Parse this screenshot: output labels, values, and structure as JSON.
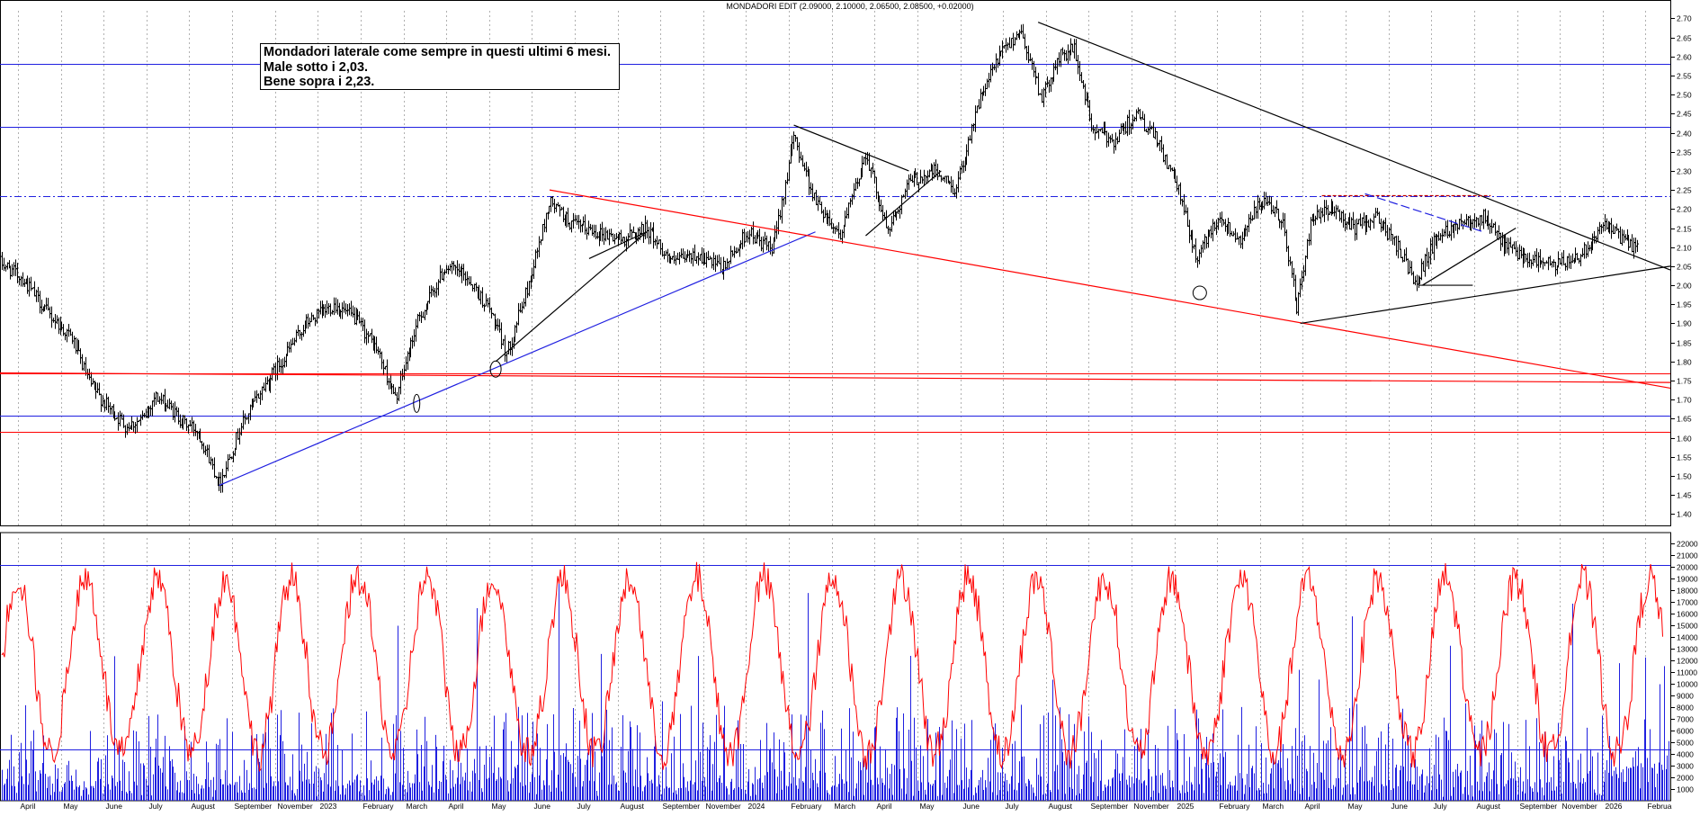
{
  "header": {
    "title": "MONDADORI EDIT (2.09000, 2.10000, 2.06500, 2.08500, +0.02000)"
  },
  "annotation": {
    "line1": "Mondadori laterale come sempre in questi ultimi  6 mesi.",
    "line2": "Male sotto i 2,03.",
    "line3": "Bene sopra i 2,23."
  },
  "colors": {
    "price_bars": "#000000",
    "support_line": "#2020e0",
    "resistance_red": "#ff0000",
    "horizontal_blue": "#2020e0",
    "oscillator": "#ff0000",
    "volume": "#2020e0",
    "grid": "#b0b0b0"
  },
  "chart_data": [
    {
      "type": "line",
      "name": "price",
      "x_axis_labels": [
        "April",
        "May",
        "June",
        "July",
        "August",
        "September",
        "November",
        "2023",
        "February",
        "March",
        "April",
        "May",
        "June",
        "July",
        "August",
        "September",
        "November",
        "2024",
        "February",
        "March",
        "April",
        "May",
        "June",
        "July",
        "August",
        "September",
        "November",
        "2025",
        "February",
        "March",
        "April",
        "May",
        "June",
        "July",
        "August",
        "September",
        "November",
        "2026",
        "Februa"
      ],
      "y_ticks": [
        "1.40",
        "1.45",
        "1.50",
        "1.55",
        "1.60",
        "1.65",
        "1.70",
        "1.75",
        "1.80",
        "1.85",
        "1.90",
        "1.95",
        "2.00",
        "2.05",
        "2.10",
        "2.15",
        "2.20",
        "2.25",
        "2.30",
        "2.35",
        "2.40",
        "2.45",
        "2.50",
        "2.55",
        "2.60",
        "2.65",
        "2.70"
      ],
      "ylim": [
        1.37,
        2.72
      ],
      "x_range_months": [
        0,
        46.5
      ],
      "price_path": [
        [
          0.0,
          2.06
        ],
        [
          0.6,
          2.02
        ],
        [
          1.3,
          1.93
        ],
        [
          2.0,
          1.86
        ],
        [
          2.5,
          1.74
        ],
        [
          3.0,
          1.68
        ],
        [
          3.5,
          1.63
        ],
        [
          4.0,
          1.65
        ],
        [
          4.3,
          1.71
        ],
        [
          4.7,
          1.68
        ],
        [
          5.1,
          1.64
        ],
        [
          5.5,
          1.62
        ],
        [
          6.1,
          1.48
        ],
        [
          6.7,
          1.63
        ],
        [
          7.3,
          1.73
        ],
        [
          7.9,
          1.81
        ],
        [
          8.5,
          1.9
        ],
        [
          9.3,
          1.95
        ],
        [
          9.9,
          1.91
        ],
        [
          10.5,
          1.83
        ],
        [
          11.0,
          1.7
        ],
        [
          11.6,
          1.9
        ],
        [
          12.4,
          2.05
        ],
        [
          13.0,
          2.02
        ],
        [
          13.6,
          1.94
        ],
        [
          14.1,
          1.82
        ],
        [
          14.7,
          2.0
        ],
        [
          15.3,
          2.22
        ],
        [
          15.9,
          2.16
        ],
        [
          16.6,
          2.14
        ],
        [
          17.3,
          2.12
        ],
        [
          18.0,
          2.15
        ],
        [
          18.7,
          2.06
        ],
        [
          19.4,
          2.08
        ],
        [
          20.1,
          2.04
        ],
        [
          20.8,
          2.14
        ],
        [
          21.5,
          2.09
        ],
        [
          22.1,
          2.39
        ],
        [
          22.7,
          2.22
        ],
        [
          23.4,
          2.13
        ],
        [
          24.1,
          2.35
        ],
        [
          24.7,
          2.14
        ],
        [
          25.3,
          2.27
        ],
        [
          26.0,
          2.3
        ],
        [
          26.6,
          2.25
        ],
        [
          27.2,
          2.47
        ],
        [
          27.8,
          2.6
        ],
        [
          28.4,
          2.67
        ],
        [
          29.0,
          2.49
        ],
        [
          29.5,
          2.6
        ],
        [
          29.9,
          2.62
        ],
        [
          30.4,
          2.41
        ],
        [
          31.0,
          2.38
        ],
        [
          31.6,
          2.45
        ],
        [
          32.2,
          2.38
        ],
        [
          32.8,
          2.25
        ],
        [
          33.3,
          2.07
        ],
        [
          33.9,
          2.18
        ],
        [
          34.5,
          2.12
        ],
        [
          35.1,
          2.22
        ],
        [
          35.7,
          2.17
        ],
        [
          36.1,
          1.94
        ],
        [
          36.5,
          2.17
        ],
        [
          37.1,
          2.2
        ],
        [
          37.7,
          2.15
        ],
        [
          38.3,
          2.18
        ],
        [
          38.9,
          2.1
        ],
        [
          39.4,
          2.01
        ],
        [
          40.0,
          2.13
        ],
        [
          40.7,
          2.17
        ],
        [
          41.3,
          2.18
        ],
        [
          41.9,
          2.1
        ],
        [
          42.6,
          2.07
        ],
        [
          43.3,
          2.05
        ],
        [
          44.0,
          2.08
        ],
        [
          44.6,
          2.16
        ],
        [
          45.2,
          2.12
        ],
        [
          45.6,
          2.09
        ]
      ],
      "horizontal_lines": [
        {
          "value": 2.58,
          "color": "#2020e0"
        },
        {
          "value": 2.415,
          "color": "#2020e0"
        },
        {
          "value": 2.233,
          "color": "#2020e0",
          "style": "dash-dot"
        },
        {
          "value": 1.658,
          "color": "#2020e0"
        },
        {
          "value": 1.77,
          "color": "#ff0000"
        },
        {
          "value": 1.615,
          "color": "#ff0000"
        }
      ]
    },
    {
      "type": "bar",
      "name": "volume",
      "y_ticks": [
        "1000",
        "2000",
        "3000",
        "4000",
        "5000",
        "6000",
        "7000",
        "8000",
        "9000",
        "10000",
        "11000",
        "12000",
        "13000",
        "14000",
        "15000",
        "16000",
        "17000",
        "18000",
        "19000",
        "20000",
        "21000",
        "22000"
      ],
      "ylim": [
        0,
        22500
      ],
      "reference_lines": [
        20200,
        4400
      ]
    }
  ]
}
